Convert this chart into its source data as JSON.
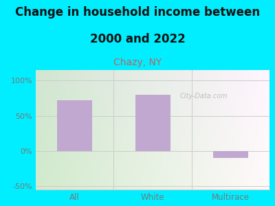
{
  "title_line1": "Change in household income between",
  "title_line2": "2000 and 2022",
  "subtitle": "Chazy, NY",
  "categories": [
    "All",
    "White",
    "Multirace"
  ],
  "values": [
    72,
    80,
    -10
  ],
  "bar_color": "#c0a8d0",
  "title_fontsize": 12,
  "subtitle_fontsize": 10,
  "subtitle_color": "#c06060",
  "tick_color": "#777777",
  "background_outer": "#00eeff",
  "ylim": [
    -55,
    115
  ],
  "yticks": [
    -50,
    0,
    50,
    100
  ],
  "ytick_labels": [
    "-50%",
    "0%",
    "50%",
    "100%"
  ],
  "watermark": "City-Data.com",
  "grid_color": "#cccccc",
  "plot_bg_colors": [
    "#d4e8c8",
    "#eef4e8",
    "#f8f8f4",
    "#eeeeee"
  ],
  "bar_width": 0.45
}
